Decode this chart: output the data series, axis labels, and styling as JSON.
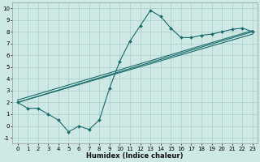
{
  "xlabel": "Humidex (Indice chaleur)",
  "background_color": "#cde8e5",
  "grid_color": "#aacfcc",
  "line_color": "#1a6b6b",
  "xlim": [
    -0.5,
    23.5
  ],
  "ylim": [
    -1.5,
    10.5
  ],
  "xticks": [
    0,
    1,
    2,
    3,
    4,
    5,
    6,
    7,
    8,
    9,
    10,
    11,
    12,
    13,
    14,
    15,
    16,
    17,
    18,
    19,
    20,
    21,
    22,
    23
  ],
  "yticks": [
    -1,
    0,
    1,
    2,
    3,
    4,
    5,
    6,
    7,
    8,
    9,
    10
  ],
  "line1_x": [
    0,
    1,
    2,
    3,
    4,
    5,
    6,
    7,
    8,
    9,
    10,
    11,
    12,
    13,
    14,
    15,
    16,
    17,
    18,
    19,
    20,
    21,
    22,
    23
  ],
  "line1_y": [
    2.0,
    1.5,
    1.5,
    1.0,
    0.5,
    -0.5,
    0.0,
    -0.3,
    0.5,
    3.2,
    5.5,
    7.2,
    8.5,
    9.8,
    9.3,
    8.3,
    7.5,
    7.5,
    7.7,
    7.8,
    8.0,
    8.2,
    8.3,
    8.0
  ],
  "line2_x": [
    0,
    23
  ],
  "line2_y": [
    2.0,
    8.0
  ],
  "line3_x": [
    0,
    23
  ],
  "line3_y": [
    2.0,
    7.8
  ],
  "line4_x": [
    0,
    23
  ],
  "line4_y": [
    2.2,
    8.1
  ],
  "figsize": [
    3.2,
    2.0
  ],
  "dpi": 100,
  "tick_fontsize": 5,
  "xlabel_fontsize": 6
}
